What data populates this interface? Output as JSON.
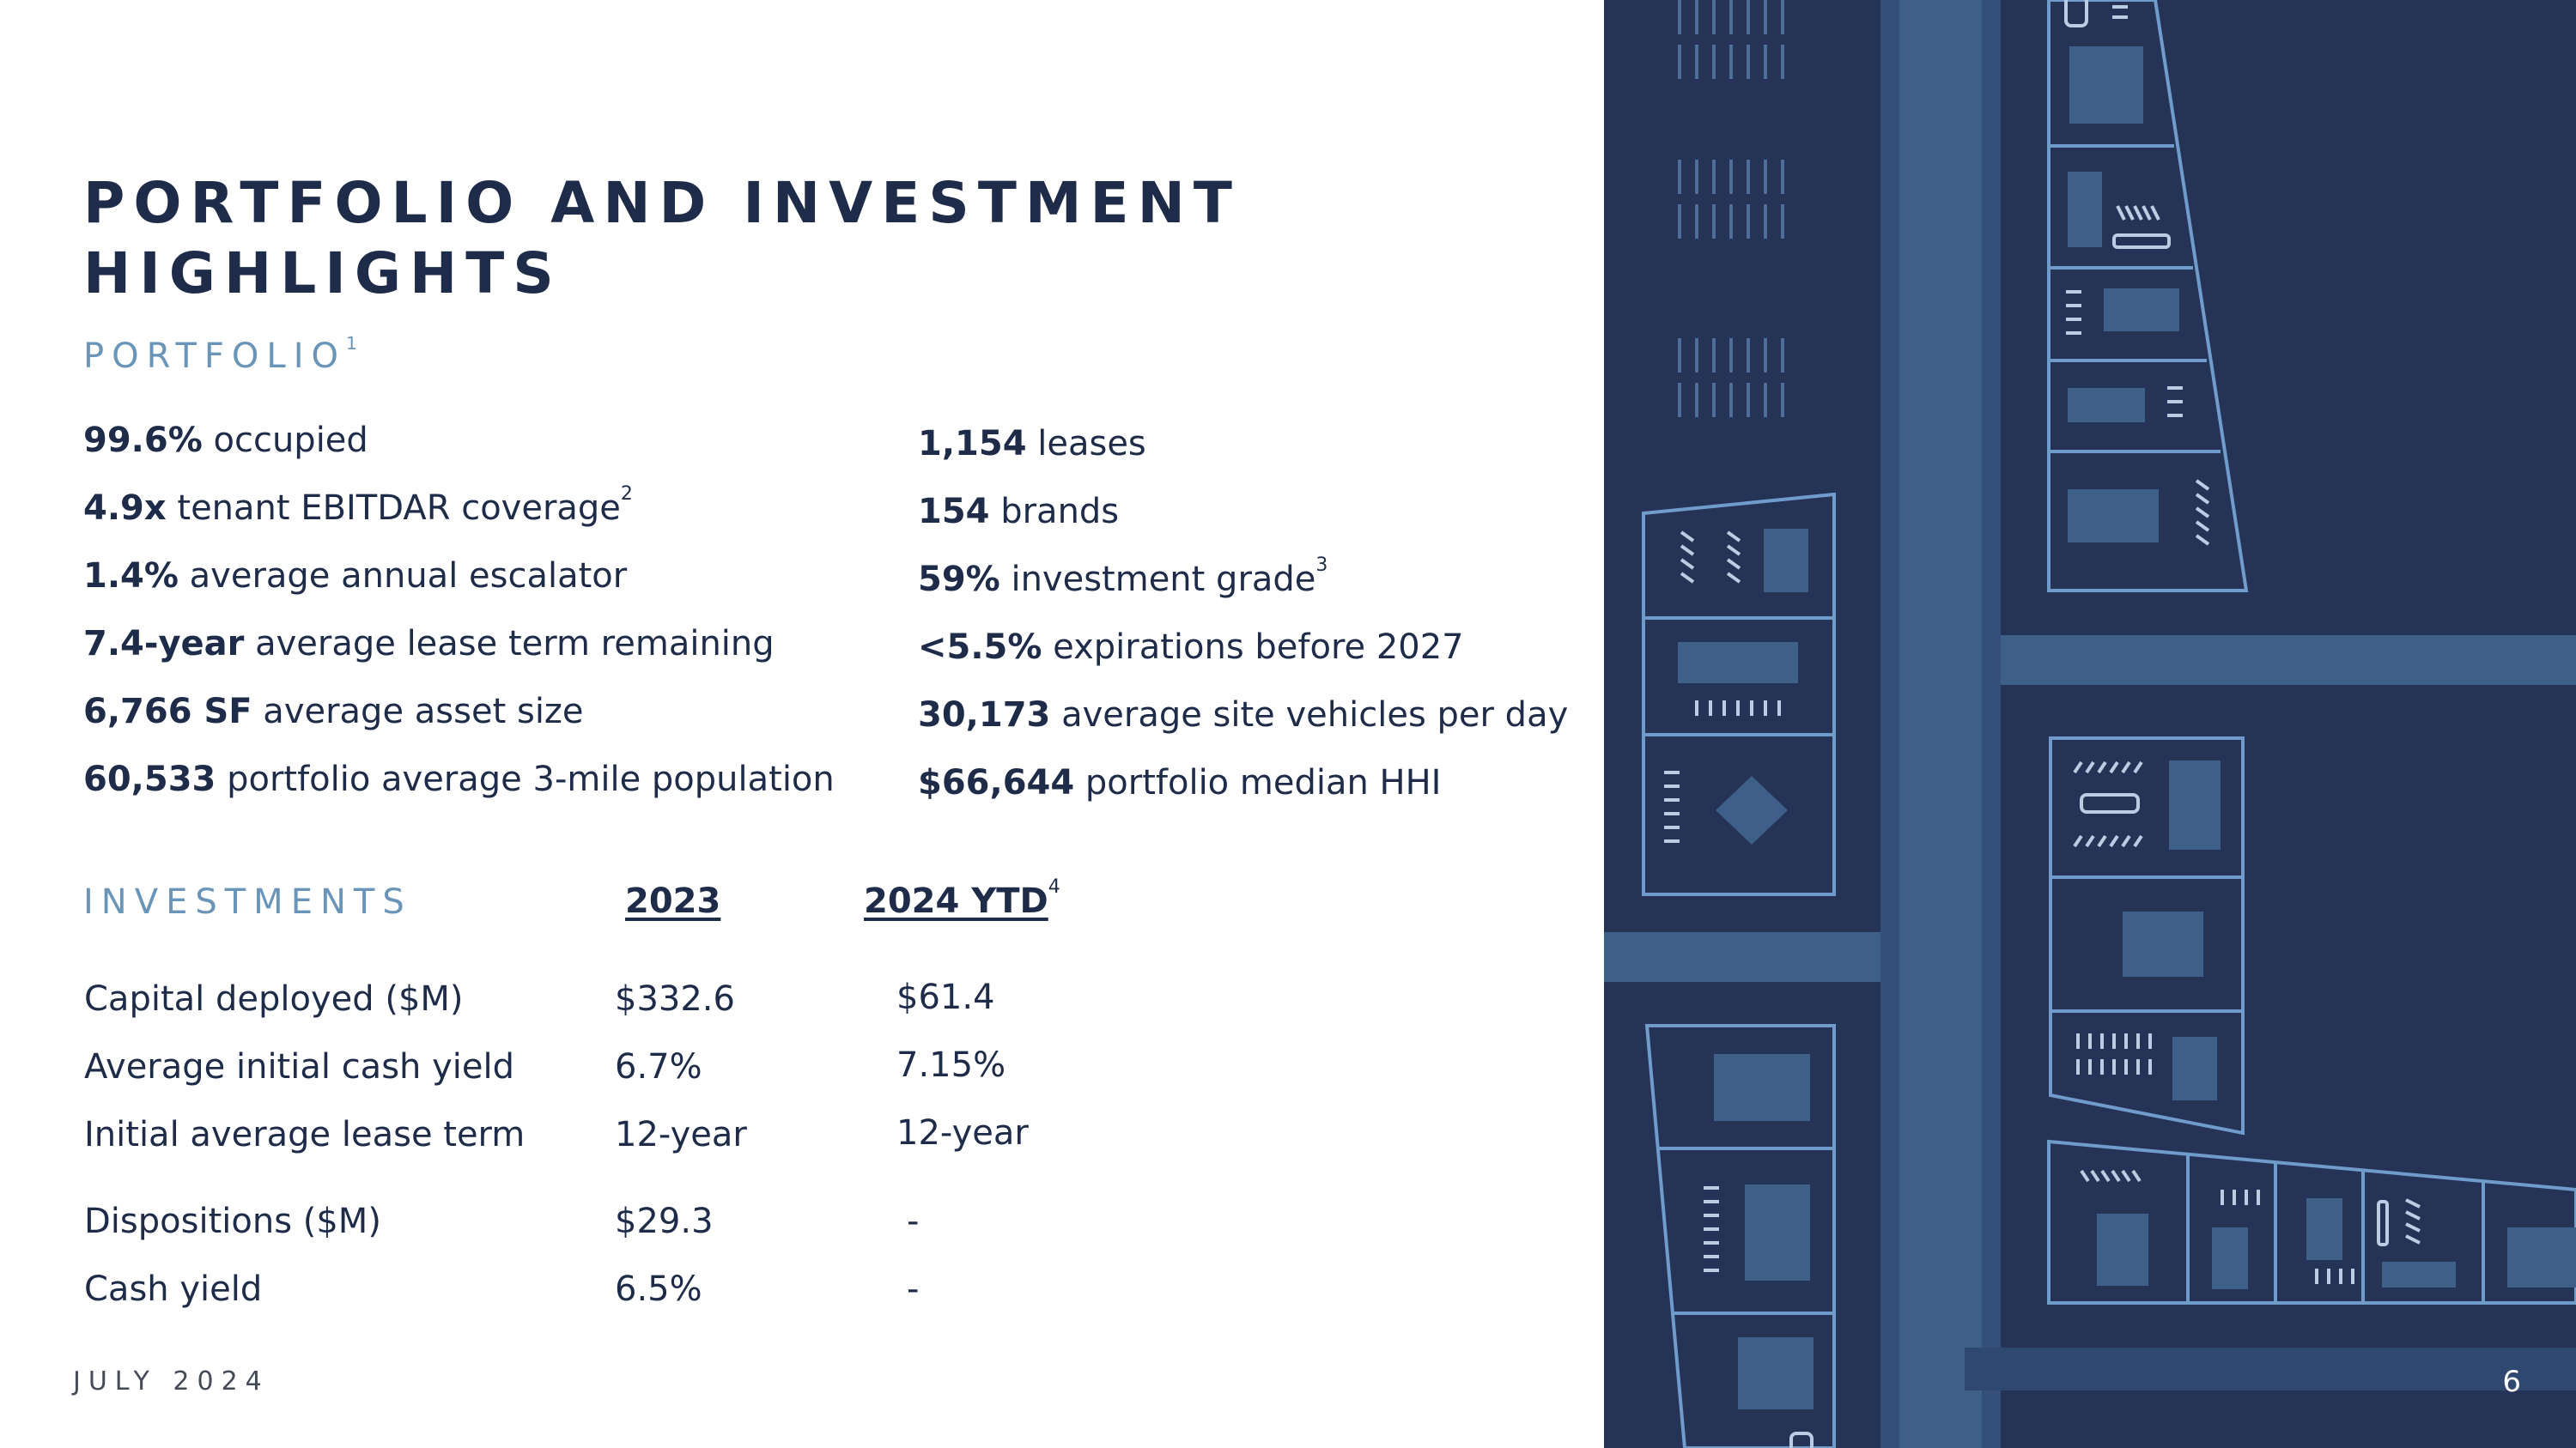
{
  "title": "PORTFOLIO AND INVESTMENT HIGHLIGHTS",
  "portfolio": {
    "label": "PORTFOLIO",
    "footnote": "1",
    "left_stats": [
      {
        "value": "99.6%",
        "text": " occupied",
        "sup": ""
      },
      {
        "value": "4.9x",
        "text": " tenant EBITDAR coverage",
        "sup": "2"
      },
      {
        "value": "1.4%",
        "text": " average annual escalator",
        "sup": ""
      },
      {
        "value": "7.4-year",
        "text": " average lease term remaining",
        "sup": ""
      },
      {
        "value": "6,766 SF",
        "text": " average asset size",
        "sup": ""
      },
      {
        "value": "60,533",
        "text": " portfolio average 3-mile population",
        "sup": ""
      }
    ],
    "right_stats": [
      {
        "value": "1,154",
        "text": " leases",
        "sup": ""
      },
      {
        "value": "154",
        "text": " brands",
        "sup": ""
      },
      {
        "value": "59%",
        "text": " investment grade",
        "sup": "3"
      },
      {
        "value": "<5.5%",
        "text": " expirations before 2027",
        "sup": ""
      },
      {
        "value": "30,173",
        "text": " average site vehicles per day",
        "sup": ""
      },
      {
        "value": "$66,644",
        "text": " portfolio median HHI",
        "sup": ""
      }
    ]
  },
  "investments": {
    "label": "INVESTMENTS",
    "col1": "2023",
    "col2": "2024 YTD",
    "col2_sup": "4",
    "rows": [
      {
        "label": "Capital deployed ($M)",
        "v2023": "$332.6",
        "v2024": "$61.4"
      },
      {
        "label": "Average initial cash yield",
        "v2023": "6.7%",
        "v2024": "7.15%"
      },
      {
        "label": "Initial average lease term",
        "v2023": "12-year",
        "v2024": "12-year"
      },
      {
        "label": "Dispositions ($M)",
        "v2023": "$29.3",
        "v2024": "-"
      },
      {
        "label": "Cash yield",
        "v2023": "6.5%",
        "v2024": "-"
      }
    ]
  },
  "footer": {
    "date": "JULY 2024",
    "page": "6"
  },
  "colors": {
    "navy": "#1e2c4a",
    "accent_blue": "#6a95b8",
    "art_background": "#243356",
    "art_road": "#3e5f88",
    "art_line": "#6f9ccb"
  }
}
